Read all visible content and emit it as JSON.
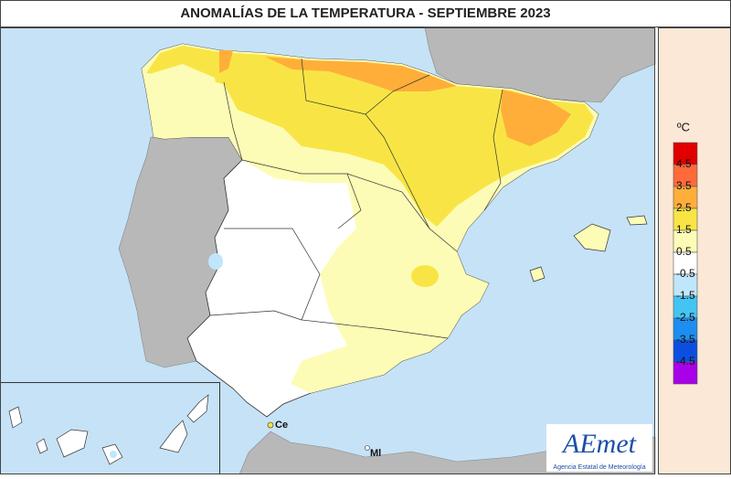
{
  "title": "ANOMALÍAS DE LA TEMPERATURA - SEPTIEMBRE 2023",
  "legend": {
    "unit": "ºC",
    "labels": [
      "4.5",
      "3.5",
      "2.5",
      "1.5",
      "0.5",
      "-0.5",
      "-1.5",
      "-2.5",
      "-3.5",
      "-4.5"
    ],
    "colors": [
      "#e00000",
      "#ff6a3a",
      "#ffae3a",
      "#f8e545",
      "#fdfcb6",
      "#ffffff",
      "#bfe6fa",
      "#44c4f2",
      "#1b8ef0",
      "#0c4fe0",
      "#a800e8"
    ]
  },
  "places": {
    "ceuta": "Ce",
    "melilla": "Ml"
  },
  "logo": {
    "name": "AEmet",
    "caption": "Agencia Estatal de Meteorología"
  }
}
